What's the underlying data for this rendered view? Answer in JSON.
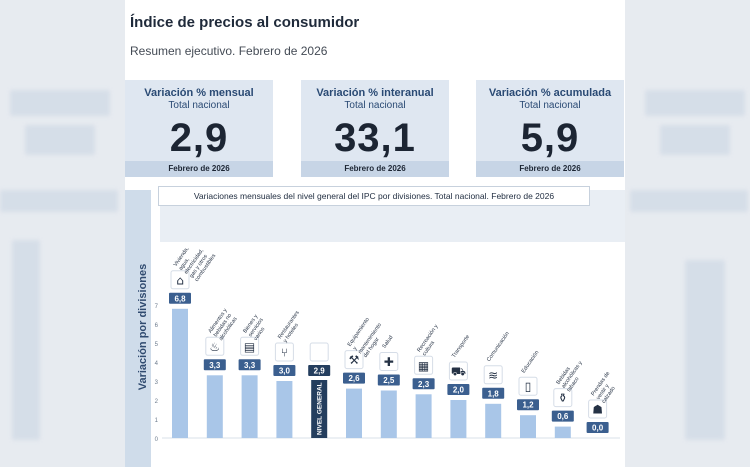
{
  "page": {
    "title": "Índice de precios al consumidor",
    "subtitle": "Resumen ejecutivo. Febrero de 2026"
  },
  "kpis": [
    {
      "name": "Variación % mensual",
      "scope": "Total nacional",
      "value": "2,9",
      "date": "Febrero de 2026"
    },
    {
      "name": "Variación % interanual",
      "scope": "Total nacional",
      "value": "33,1",
      "date": "Febrero de 2026"
    },
    {
      "name": "Variación % acumulada",
      "scope": "Total nacional",
      "value": "5,9",
      "date": "Febrero de 2026"
    }
  ],
  "colors": {
    "bar": "#a9c6e8",
    "bar_highlight": "#243e5e",
    "label_bg": "#3b5f8f"
  },
  "chart_data": {
    "type": "bar",
    "title": "Variaciones mensuales del nivel general del IPC por divisiones. Total nacional. Febrero de 2026",
    "ylabel": "Variación por divisiones",
    "ylim": [
      0,
      7
    ],
    "yticks": [
      "0",
      "1",
      "2",
      "3",
      "4",
      "5",
      "6",
      "7"
    ],
    "categories": [
      "Vivienda, agua, electricidad, gas y otros combustibles",
      "Alimentos y bebidas no alcohólicas",
      "Bienes y servicios varios",
      "Restaurantes y hoteles",
      "NIVEL GENERAL",
      "Equipamiento y mantenimiento del hogar",
      "Salud",
      "Recreación y cultura",
      "Transporte",
      "Comunicación",
      "Educación",
      "Bebidas alcohólicas y tabaco",
      "Prendas de vestir y calzado"
    ],
    "values": [
      6.8,
      3.3,
      3.3,
      3.0,
      2.9,
      2.6,
      2.5,
      2.3,
      2.0,
      1.8,
      1.2,
      0.6,
      0.0
    ],
    "labels": [
      "6,8",
      "3,3",
      "3,3",
      "3,0",
      "2,9",
      "2,6",
      "2,5",
      "2,3",
      "2,0",
      "1,8",
      "1,2",
      "0,6",
      "0,0"
    ],
    "icons": [
      "house-energy-icon",
      "food-icon",
      "products-icon",
      "restaurant-icon",
      "basket-icon",
      "tools-icon",
      "health-cross-icon",
      "culture-icon",
      "car-icon",
      "wifi-icon",
      "book-icon",
      "bottle-icon",
      "shirt-icon"
    ],
    "highlight_index": 4
  }
}
